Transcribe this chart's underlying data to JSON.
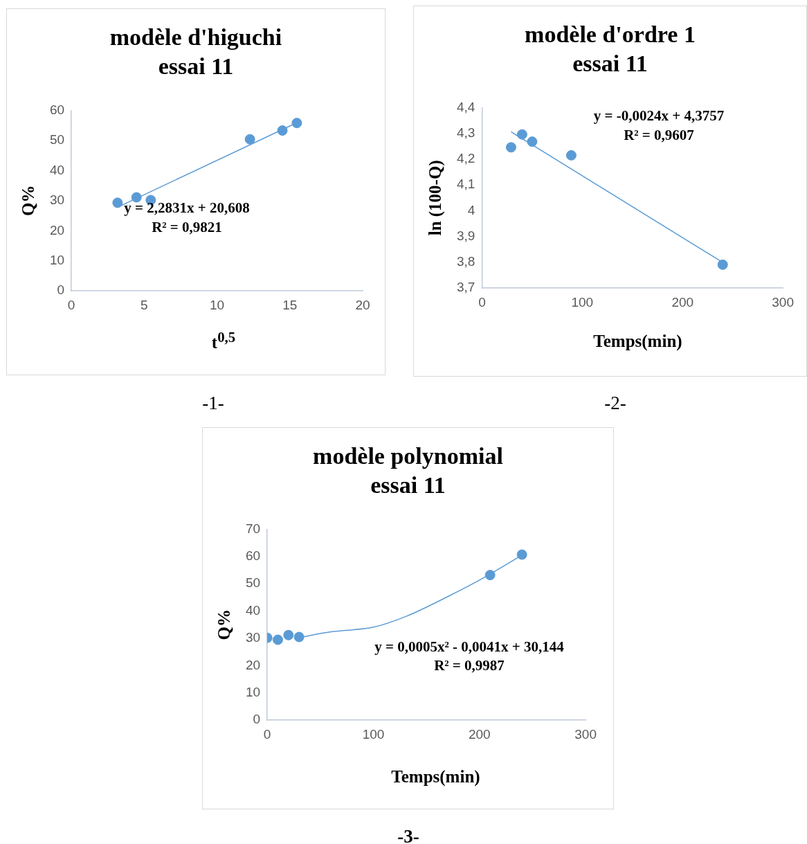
{
  "chart_data": [
    {
      "type": "scatter",
      "title": "modèle d'higuchi",
      "subtitle": "essai 11",
      "xlabel": "t$^{0,5}$",
      "ylabel": "Q%",
      "xlim": [
        0,
        20
      ],
      "xticks": [
        0,
        5,
        10,
        15,
        20
      ],
      "ylim": [
        0,
        60
      ],
      "yticks": [
        0,
        10,
        20,
        30,
        40,
        50,
        60
      ],
      "grid": false,
      "legend": false,
      "series": [
        {
          "color": "#5b9bd5",
          "marker": "circle",
          "x": [
            3.17,
            4.47,
            5.45,
            12.26,
            14.49,
            15.48
          ],
          "values": [
            29.3,
            31.1,
            30.2,
            50.4,
            53.3,
            55.8
          ]
        },
        {
          "type": "line",
          "marker": "none",
          "color": "#5b9bd5",
          "x": [
            3.17,
            15.48
          ],
          "values": [
            27.8,
            55.9
          ]
        }
      ],
      "annotations": [
        "y = 2,2831x + 20,608",
        "R² = 0,9821",
        "-1-"
      ]
    },
    {
      "type": "scatter",
      "title": "modèle d'ordre 1",
      "subtitle": "essai 11",
      "xlabel": "Temps(min)",
      "ylabel": "ln (100-Q)",
      "xlim": [
        0,
        300
      ],
      "xticks": [
        0,
        100,
        200,
        300
      ],
      "ylim": [
        3.7,
        4.4
      ],
      "yticks": [
        {
          "value": 3.7,
          "label": "3,7"
        },
        {
          "value": 3.8,
          "label": "3,8"
        },
        {
          "value": 3.9,
          "label": "3,9"
        },
        4,
        {
          "value": 4.1,
          "label": "4,1"
        },
        {
          "value": 4.2,
          "label": "4,2"
        },
        {
          "value": 4.3,
          "label": "4,3"
        },
        {
          "value": 4.4,
          "label": "4,4"
        }
      ],
      "grid": false,
      "legend": false,
      "series": [
        {
          "color": "#5b9bd5",
          "marker": "circle",
          "x": [
            29,
            40,
            50,
            89,
            240
          ],
          "values": [
            4.246,
            4.296,
            4.268,
            4.215,
            3.791
          ]
        },
        {
          "type": "line",
          "marker": "none",
          "color": "#5b9bd5",
          "x": [
            29,
            240
          ],
          "values": [
            4.306,
            3.8
          ]
        }
      ],
      "annotations": [
        "y = -0,0024x + 4,3757",
        "R² = 0,9607",
        "-2-"
      ]
    },
    {
      "type": "scatter",
      "title": "modèle polynomial",
      "subtitle": "essai 11",
      "xlabel": "Temps(min)",
      "ylabel": "Q%",
      "xlim": [
        0,
        300
      ],
      "xticks": [
        0,
        100,
        200,
        300
      ],
      "ylim": [
        0,
        70
      ],
      "yticks": [
        0,
        10,
        20,
        30,
        40,
        50,
        60,
        70
      ],
      "grid": false,
      "legend": false,
      "series": [
        {
          "color": "#5b9bd5",
          "marker": "circle",
          "x": [
            0,
            10,
            20,
            30,
            210,
            240
          ],
          "values": [
            30.2,
            29.5,
            31.2,
            30.5,
            53.2,
            60.7
          ]
        },
        {
          "type": "line",
          "marker": "none",
          "color": "#5b9bd5",
          "x": [
            30,
            60,
            100,
            131,
            170,
            202,
            240
          ],
          "values": [
            30.3,
            32.4,
            34.1,
            38.1,
            45.3,
            51.8,
            60.5
          ]
        }
      ],
      "annotations": [
        "y = 0,0005x² - 0,0041x + 30,144",
        "R² = 0,9987",
        "-3-"
      ]
    }
  ]
}
